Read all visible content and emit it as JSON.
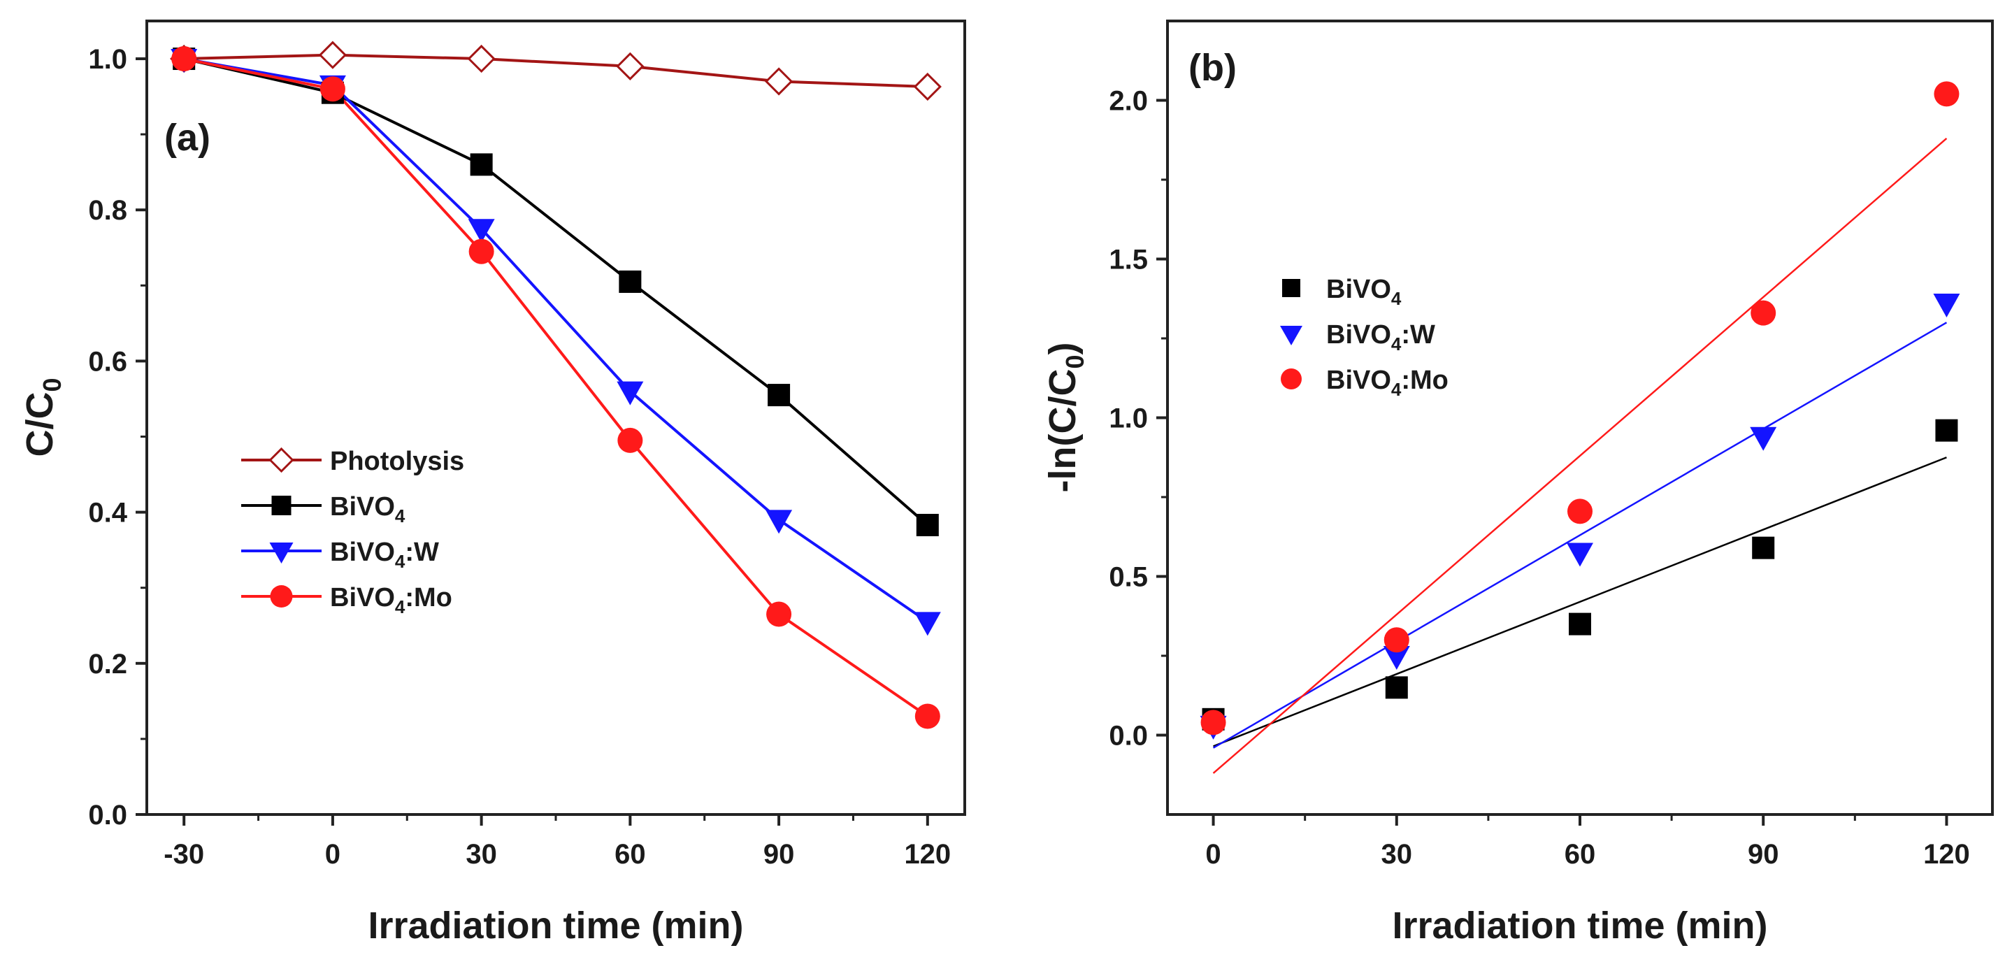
{
  "chart_data": [
    {
      "type": "line",
      "panel_label": "(a)",
      "xlabel": "Irradiation time (min)",
      "ylabel": {
        "main": "C/C",
        "sub": "0"
      },
      "xlim": [
        -37.5,
        127.5
      ],
      "ylim": [
        0.0,
        1.05
      ],
      "xticks": [
        -30,
        0,
        30,
        60,
        90,
        120
      ],
      "xtick_labels": [
        "-30",
        "0",
        "30",
        "60",
        "90",
        "120"
      ],
      "yticks": [
        0.0,
        0.2,
        0.4,
        0.6,
        0.8,
        1.0
      ],
      "ytick_labels": [
        "0.0",
        "0.2",
        "0.4",
        "0.6",
        "0.8",
        "1.0"
      ],
      "grid": false,
      "legend_position": "lower-left",
      "x": [
        -30,
        0,
        30,
        60,
        90,
        120
      ],
      "series": [
        {
          "name": "Photolysis",
          "label_main": "Photolysis",
          "label_sub": "",
          "label_tail": "",
          "color": "#a31515",
          "marker": "diamond-open",
          "values": [
            1.0,
            1.005,
            1.0,
            0.99,
            0.97,
            0.963
          ]
        },
        {
          "name": "BiVO4",
          "label_main": "BiVO",
          "label_sub": "4",
          "label_tail": "",
          "color": "#000000",
          "marker": "square",
          "values": [
            1.0,
            0.955,
            0.86,
            0.705,
            0.555,
            0.383
          ]
        },
        {
          "name": "BiVO4:W",
          "label_main": "BiVO",
          "label_sub": "4",
          "label_tail": ":W",
          "color": "#1414ff",
          "marker": "triangle-down",
          "values": [
            1.0,
            0.965,
            0.775,
            0.56,
            0.39,
            0.255
          ]
        },
        {
          "name": "BiVO4:Mo",
          "label_main": "BiVO",
          "label_sub": "4",
          "label_tail": ":Mo",
          "color": "#ff1a1a",
          "marker": "circle",
          "values": [
            1.0,
            0.96,
            0.745,
            0.495,
            0.265,
            0.13
          ]
        }
      ]
    },
    {
      "type": "scatter",
      "panel_label": "(b)",
      "xlabel": "Irradiation time (min)",
      "ylabel": {
        "main": "-ln(C/C",
        "sub": "0",
        "tail": ")"
      },
      "xlim": [
        -7.5,
        127.5
      ],
      "ylim": [
        -0.25,
        2.25
      ],
      "xticks": [
        0,
        30,
        60,
        90,
        120
      ],
      "xtick_labels": [
        "0",
        "30",
        "60",
        "90",
        "120"
      ],
      "yticks": [
        0.0,
        0.5,
        1.0,
        1.5,
        2.0
      ],
      "ytick_labels": [
        "0.0",
        "0.5",
        "1.0",
        "1.5",
        "2.0"
      ],
      "grid": false,
      "legend_position": "upper-left",
      "x": [
        0,
        30,
        60,
        90,
        120
      ],
      "series": [
        {
          "name": "BiVO4",
          "label_main": "BiVO",
          "label_sub": "4",
          "label_tail": "",
          "color": "#000000",
          "marker": "square",
          "values": [
            0.05,
            0.15,
            0.35,
            0.59,
            0.96
          ],
          "fit": {
            "x": [
              0,
              120
            ],
            "y": [
              -0.035,
              0.875
            ]
          }
        },
        {
          "name": "BiVO4:W",
          "label_main": "BiVO",
          "label_sub": "4",
          "label_tail": ":W",
          "color": "#1414ff",
          "marker": "triangle-down",
          "values": [
            0.03,
            0.25,
            0.575,
            0.94,
            1.36
          ],
          "fit": {
            "x": [
              0,
              120
            ],
            "y": [
              -0.04,
              1.3
            ]
          }
        },
        {
          "name": "BiVO4:Mo",
          "label_main": "BiVO",
          "label_sub": "4",
          "label_tail": ":Mo",
          "color": "#ff1a1a",
          "marker": "circle",
          "values": [
            0.04,
            0.3,
            0.705,
            1.33,
            2.02
          ],
          "fit": {
            "x": [
              0,
              120
            ],
            "y": [
              -0.12,
              1.88
            ]
          }
        }
      ]
    }
  ]
}
